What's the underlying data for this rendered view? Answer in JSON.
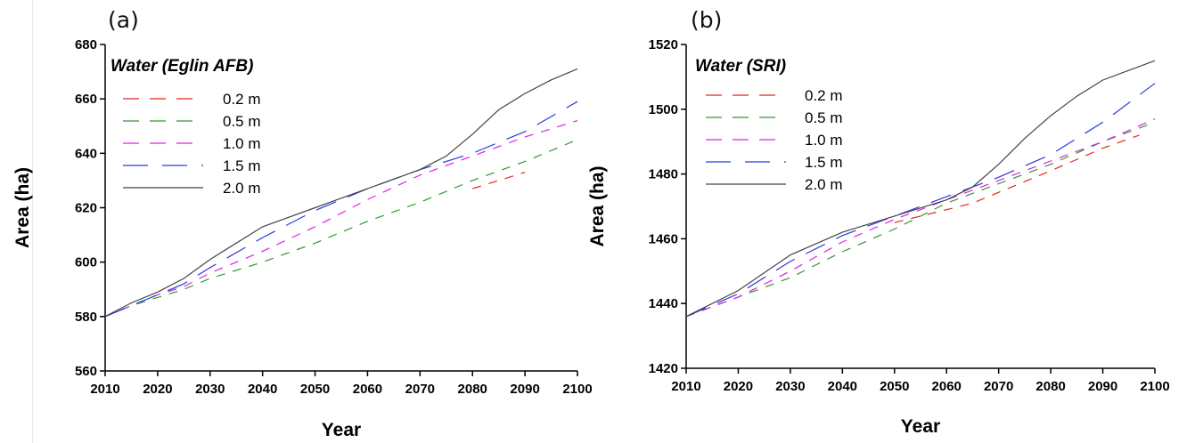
{
  "chart_data": [
    {
      "type": "line",
      "panel_label": "(a)",
      "title": "Water (Eglin AFB)",
      "xlabel": "Year",
      "ylabel": "Area (ha)",
      "xlim": [
        2010,
        2100
      ],
      "ylim": [
        560,
        680
      ],
      "xticks": [
        2010,
        2020,
        2030,
        2040,
        2050,
        2060,
        2070,
        2080,
        2090,
        2100
      ],
      "yticks": [
        560,
        580,
        600,
        620,
        640,
        660,
        680
      ],
      "grid": false,
      "legend_position": "top-left",
      "series": [
        {
          "name": "0.2 m",
          "color": "#e8241c",
          "dash": "dashed",
          "x": [
            2080,
            2085,
            2090
          ],
          "y": [
            627,
            630,
            633
          ]
        },
        {
          "name": "0.5 m",
          "color": "#2e9a2e",
          "dash": "dashed",
          "x": [
            2010,
            2015,
            2020,
            2025,
            2030,
            2040,
            2050,
            2060,
            2070,
            2080,
            2090,
            2100
          ],
          "y": [
            580,
            584,
            587,
            590,
            594,
            600,
            607,
            615,
            622,
            630,
            637,
            645
          ]
        },
        {
          "name": "1.0 m",
          "color": "#e020e0",
          "dash": "dashed",
          "x": [
            2010,
            2015,
            2020,
            2025,
            2030,
            2040,
            2050,
            2060,
            2070,
            2080,
            2090,
            2100
          ],
          "y": [
            580,
            584,
            588,
            591,
            596,
            604,
            613,
            623,
            632,
            639,
            646,
            652
          ]
        },
        {
          "name": "1.5 m",
          "color": "#2a3ae0",
          "dash": "longdash",
          "x": [
            2010,
            2015,
            2020,
            2025,
            2030,
            2040,
            2050,
            2060,
            2070,
            2080,
            2090,
            2100
          ],
          "y": [
            580,
            584,
            588,
            592,
            598,
            609,
            619,
            627,
            634,
            640,
            648,
            659
          ]
        },
        {
          "name": "2.0 m",
          "color": "#444444",
          "dash": "solid",
          "x": [
            2010,
            2015,
            2020,
            2025,
            2030,
            2040,
            2050,
            2060,
            2070,
            2075,
            2080,
            2085,
            2090,
            2095,
            2100
          ],
          "y": [
            580,
            585,
            589,
            594,
            601,
            613,
            620,
            627,
            634,
            639,
            647,
            656,
            662,
            667,
            671
          ]
        }
      ]
    },
    {
      "type": "line",
      "panel_label": "(b)",
      "title": "Water (SRI)",
      "xlabel": "Year",
      "ylabel": "Area (ha)",
      "xlim": [
        2010,
        2100
      ],
      "ylim": [
        1420,
        1520
      ],
      "xticks": [
        2010,
        2020,
        2030,
        2040,
        2050,
        2060,
        2070,
        2080,
        2090,
        2100
      ],
      "yticks": [
        1420,
        1440,
        1460,
        1480,
        1500,
        1520
      ],
      "grid": false,
      "legend_position": "top-left",
      "series": [
        {
          "name": "0.2 m",
          "color": "#e8241c",
          "dash": "dashed",
          "x": [
            2050,
            2065,
            2080,
            2090,
            2097
          ],
          "y": [
            1465,
            1471,
            1481,
            1488,
            1492
          ]
        },
        {
          "name": "0.5 m",
          "color": "#2e9a2e",
          "dash": "dashed",
          "x": [
            2010,
            2020,
            2030,
            2040,
            2050,
            2060,
            2070,
            2080,
            2090,
            2100
          ],
          "y": [
            1436,
            1442,
            1448,
            1456,
            1463,
            1471,
            1477,
            1483,
            1490,
            1496
          ]
        },
        {
          "name": "1.0 m",
          "color": "#e020e0",
          "dash": "dashed",
          "x": [
            2010,
            2020,
            2030,
            2040,
            2050,
            2060,
            2070,
            2080,
            2090,
            2100
          ],
          "y": [
            1436,
            1442,
            1450,
            1459,
            1466,
            1472,
            1478,
            1484,
            1490,
            1497
          ]
        },
        {
          "name": "1.5 m",
          "color": "#2a3ae0",
          "dash": "longdash",
          "x": [
            2010,
            2020,
            2030,
            2040,
            2050,
            2060,
            2070,
            2080,
            2090,
            2100
          ],
          "y": [
            1436,
            1443,
            1453,
            1461,
            1467,
            1473,
            1479,
            1486,
            1496,
            1508
          ]
        },
        {
          "name": "2.0 m",
          "color": "#444444",
          "dash": "solid",
          "x": [
            2010,
            2020,
            2030,
            2040,
            2050,
            2060,
            2065,
            2070,
            2075,
            2080,
            2085,
            2090,
            2095,
            2100
          ],
          "y": [
            1436,
            1444,
            1455,
            1462,
            1467,
            1472,
            1476,
            1483,
            1491,
            1498,
            1504,
            1509,
            1512,
            1515
          ]
        }
      ]
    }
  ]
}
